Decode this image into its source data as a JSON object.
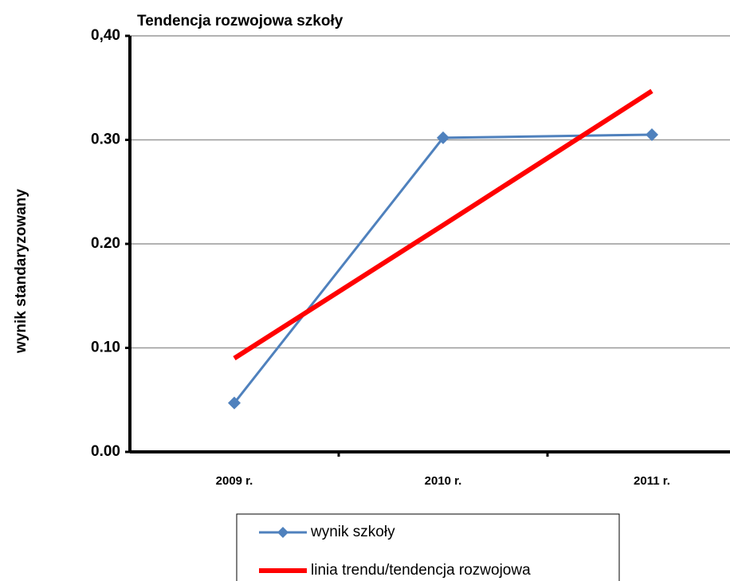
{
  "chart_data": {
    "type": "line",
    "title": "Tendencja rozwojowa szkoły",
    "y_label": "wynik standaryzowany",
    "categories": [
      "2009 r.",
      "2010 r.",
      "2011 r."
    ],
    "series": [
      {
        "name": "wynik szkoły",
        "color": "#4f81bd",
        "values": [
          0.047,
          0.302,
          0.305
        ]
      },
      {
        "name": "linia trendu/tendencja rozwojowa",
        "color": "#ff0000",
        "values": [
          0.09,
          0.218,
          0.347
        ]
      }
    ],
    "ylim": [
      0,
      0.4
    ],
    "yticks": [
      {
        "value": 0,
        "label": "0.00"
      },
      {
        "value": 0.1,
        "label": "0.10"
      },
      {
        "value": 0.2,
        "label": "0.20"
      },
      {
        "value": 0.3,
        "label": "0.30"
      },
      {
        "value": 0.4,
        "label": "0,40"
      }
    ],
    "grid": true
  }
}
